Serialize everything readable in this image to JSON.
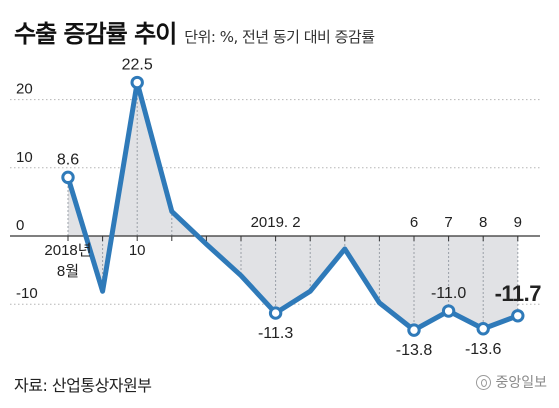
{
  "header": {
    "title": "수출 증감률 추이",
    "subtitle": "단위: %, 전년 동기 대비 증감률"
  },
  "footer": {
    "source": "자료: 산업통상자원부",
    "logo_text": "중앙일보",
    "logo_icon": "joongang-logo-icon"
  },
  "colors": {
    "line": "#2f7ab9",
    "marker_fill": "#ffffff",
    "area_fill": "#e1e2e5",
    "grid": "#b5b5b5",
    "zero_line": "#333333",
    "text": "#222222"
  },
  "chart_data": {
    "type": "area",
    "title": "수출 증감률 추이",
    "subtitle": "단위: %, 전년 동기 대비 증감률",
    "xlabel": "",
    "ylabel": "",
    "ylim": [
      -16,
      26
    ],
    "grid": true,
    "legend": "none",
    "x": [
      "2018-08",
      "2018-09",
      "2018-10",
      "2018-11",
      "2018-12",
      "2019-01",
      "2019-02",
      "2019-03",
      "2019-04",
      "2019-05",
      "2019-06",
      "2019-07",
      "2019-08",
      "2019-09"
    ],
    "y_ticks": [
      {
        "value": 20,
        "label": "20"
      },
      {
        "value": 10,
        "label": "10"
      },
      {
        "value": 0,
        "label": "0"
      },
      {
        "value": -10,
        "label": "-10"
      }
    ],
    "x_tick_labels": [
      {
        "x": "2018-08",
        "lines": [
          "2018년",
          "8월"
        ]
      },
      {
        "x": "2018-10",
        "lines": [
          "10"
        ]
      },
      {
        "x": "2019-02",
        "lines": [
          "2019. 2"
        ]
      },
      {
        "x": "2019-06",
        "lines": [
          "6"
        ]
      },
      {
        "x": "2019-07",
        "lines": [
          "7"
        ]
      },
      {
        "x": "2019-08",
        "lines": [
          "8"
        ]
      },
      {
        "x": "2019-09",
        "lines": [
          "9"
        ]
      }
    ],
    "series": [
      {
        "values": [
          8.6,
          -8.1,
          22.5,
          3.6,
          -1.2,
          -5.8,
          -11.3,
          -8.1,
          -1.9,
          -9.8,
          -13.8,
          -11.0,
          -13.6,
          -11.7
        ]
      }
    ],
    "markers": [
      0,
      2,
      6,
      10,
      11,
      12,
      13
    ],
    "data_labels": [
      {
        "index": 0,
        "label": "8.6",
        "pos": "above"
      },
      {
        "index": 2,
        "label": "22.5",
        "pos": "above"
      },
      {
        "index": 6,
        "label": "-11.3",
        "pos": "below"
      },
      {
        "index": 10,
        "label": "-13.8",
        "pos": "below"
      },
      {
        "index": 11,
        "label": "-11.0",
        "pos": "above"
      },
      {
        "index": 12,
        "label": "-13.6",
        "pos": "below"
      },
      {
        "index": 13,
        "label": "-11.7",
        "pos": "above",
        "emphasis": true
      }
    ]
  }
}
